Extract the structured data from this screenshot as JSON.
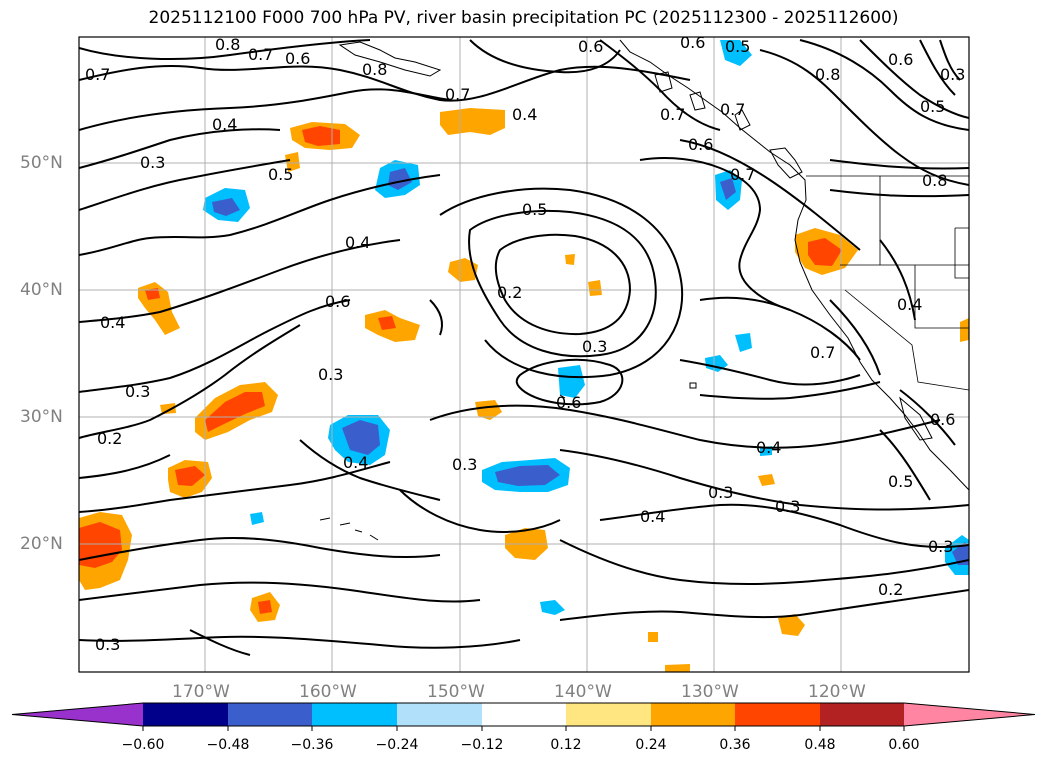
{
  "title": "2025112100 F000 700 hPa PV, river basin precipitation PC (2025112300 - 2025112600)",
  "map": {
    "projection": "PlateCarree",
    "lon_range": [
      -180,
      -110
    ],
    "lat_range": [
      10,
      60
    ],
    "gridlines": true,
    "coastlines": true,
    "state_borders": true,
    "lat_ticks": [
      "20°N",
      "30°N",
      "40°N",
      "50°N"
    ],
    "lon_ticks": [
      "170°W",
      "160°W",
      "150°W",
      "140°W",
      "130°W",
      "120°W"
    ],
    "contour_labels": [
      "0.8",
      "0.7",
      "0.6",
      "0.6",
      "0.6",
      "0.5",
      "0.3",
      "0.7",
      "0.4",
      "0.3",
      "0.5",
      "0.7",
      "0.8",
      "0.4",
      "0.7",
      "0.6",
      "0.7",
      "0.6",
      "0.8",
      "0.5",
      "0.8",
      "0.5",
      "0.6",
      "0.4",
      "0.2",
      "0.3",
      "0.6",
      "0.4",
      "0.3",
      "0.3",
      "0.2",
      "0.4",
      "0.3",
      "0.4",
      "0.3",
      "0.4",
      "0.3",
      "0.3",
      "0.2",
      "0.3",
      "0.5",
      "0.6",
      "0.7",
      "0.4",
      "0.7"
    ]
  },
  "colorbar": {
    "colors": [
      "#9932cc",
      "#00008b",
      "#3a5fcd",
      "#00bfff",
      "#b0e0fa",
      "#ffffff",
      "#ffe680",
      "#ffa500",
      "#ff4500",
      "#b22222",
      "#ff85a2"
    ],
    "tick_labels": [
      "−0.60",
      "−0.48",
      "−0.36",
      "−0.24",
      "−0.12",
      "0.12",
      "0.24",
      "0.36",
      "0.48",
      "0.60"
    ],
    "extend": "both"
  }
}
